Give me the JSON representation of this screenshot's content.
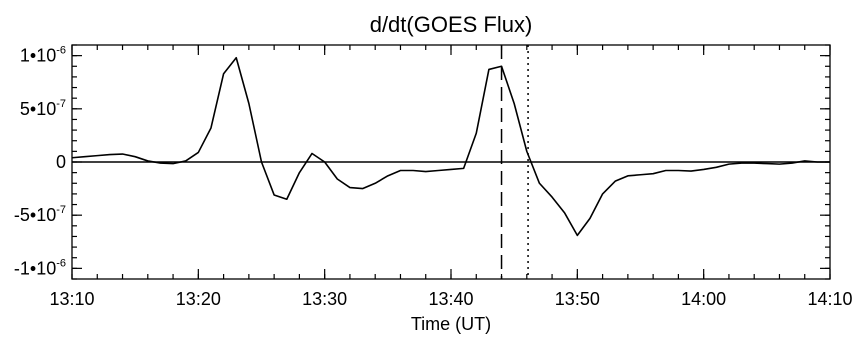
{
  "chart_data": {
    "type": "line",
    "title": "d/dt(GOES Flux)",
    "xlabel": "Time (UT)",
    "ylabel": "",
    "x_unit": "minutes after 13:10 UT",
    "xlim": [
      0,
      60
    ],
    "ylim": [
      -1.1e-06,
      1.1e-06
    ],
    "x_ticks": [
      {
        "value": 0,
        "label": "13:10"
      },
      {
        "value": 10,
        "label": "13:20"
      },
      {
        "value": 20,
        "label": "13:30"
      },
      {
        "value": 30,
        "label": "13:40"
      },
      {
        "value": 40,
        "label": "13:50"
      },
      {
        "value": 50,
        "label": "14:00"
      },
      {
        "value": 60,
        "label": "14:10"
      }
    ],
    "y_ticks": [
      {
        "value": 1e-06,
        "mantissa": "1",
        "exponent": "-6"
      },
      {
        "value": 5e-07,
        "mantissa": "5",
        "exponent": "-7"
      },
      {
        "value": 0,
        "mantissa": "0",
        "exponent": ""
      },
      {
        "value": -5e-07,
        "mantissa": "-5",
        "exponent": "-7"
      },
      {
        "value": -1e-06,
        "mantissa": "-1",
        "exponent": "-6"
      }
    ],
    "x_minor_step": 2,
    "y_minor_step": 1e-07,
    "zero_line": true,
    "grid": false,
    "series": [
      {
        "x": [
          0,
          1,
          2,
          3,
          4,
          5,
          6,
          7,
          8,
          9,
          10,
          11,
          12,
          13,
          14,
          15,
          16,
          17,
          18,
          19,
          20,
          21,
          22,
          23,
          24,
          25,
          26,
          27,
          28,
          29,
          30,
          31,
          32,
          33,
          34,
          35,
          36,
          37,
          38,
          39,
          40,
          41,
          42,
          43,
          44,
          45,
          46,
          47,
          48,
          49,
          50,
          51,
          52,
          53,
          54,
          55,
          56,
          57,
          58,
          59,
          60
        ],
        "y": [
          4e-08,
          5e-08,
          6e-08,
          7e-08,
          7.5e-08,
          5e-08,
          1e-08,
          -1e-08,
          -1.5e-08,
          1e-08,
          9e-08,
          3.2e-07,
          8.3e-07,
          9.8e-07,
          5.5e-07,
          0,
          -3.1e-07,
          -3.5e-07,
          -1e-07,
          8e-08,
          0,
          -1.6e-07,
          -2.4e-07,
          -2.5e-07,
          -2e-07,
          -1.3e-07,
          -8e-08,
          -8e-08,
          -9e-08,
          -8e-08,
          -7e-08,
          -6e-08,
          2.7e-07,
          8.7e-07,
          9e-07,
          5.5e-07,
          1e-07,
          -2e-07,
          -3.3e-07,
          -4.8e-07,
          -6.9e-07,
          -5.3e-07,
          -3e-07,
          -1.8e-07,
          -1.3e-07,
          -1.2e-07,
          -1.1e-07,
          -8e-08,
          -8e-08,
          -8.5e-08,
          -7e-08,
          -5e-08,
          -2e-08,
          -1e-08,
          -1e-08,
          -1.5e-08,
          -2e-08,
          -1e-08,
          1e-08,
          0,
          0
        ]
      }
    ],
    "vertical_markers": [
      {
        "x": 34.0,
        "style": "dashed"
      },
      {
        "x": 36.1,
        "style": "dotted"
      }
    ]
  }
}
